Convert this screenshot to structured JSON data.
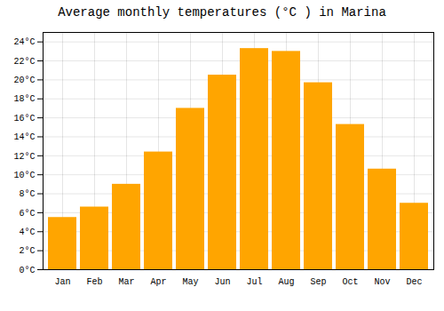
{
  "chart_data": {
    "type": "bar",
    "title": "Average monthly temperatures (°C ) in Marina",
    "categories": [
      "Jan",
      "Feb",
      "Mar",
      "Apr",
      "May",
      "Jun",
      "Jul",
      "Aug",
      "Sep",
      "Oct",
      "Nov",
      "Dec"
    ],
    "values": [
      5.5,
      6.6,
      9.0,
      12.4,
      17.0,
      20.5,
      23.3,
      23.0,
      19.7,
      15.3,
      10.6,
      7.0
    ],
    "color": "#FFA500",
    "ylim": [
      0,
      25
    ],
    "yticks": [
      {
        "value": 0,
        "label": "0°C"
      },
      {
        "value": 2,
        "label": "2°C"
      },
      {
        "value": 4,
        "label": "4°C"
      },
      {
        "value": 6,
        "label": "6°C"
      },
      {
        "value": 8,
        "label": "8°C"
      },
      {
        "value": 10,
        "label": "10°C"
      },
      {
        "value": 12,
        "label": "12°C"
      },
      {
        "value": 14,
        "label": "14°C"
      },
      {
        "value": 16,
        "label": "16°C"
      },
      {
        "value": 18,
        "label": "18°C"
      },
      {
        "value": 20,
        "label": "20°C"
      },
      {
        "value": 22,
        "label": "22°C"
      },
      {
        "value": 24,
        "label": "24°C"
      }
    ],
    "grid": true
  }
}
